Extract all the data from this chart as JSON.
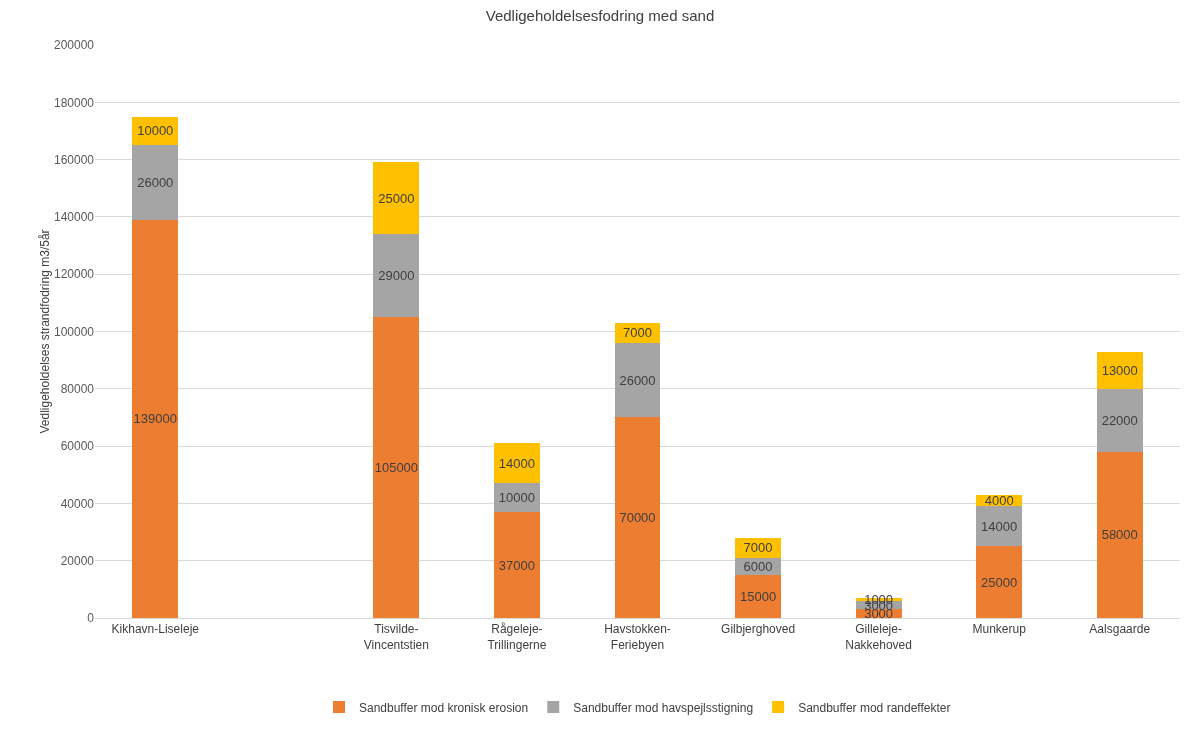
{
  "chart_data": {
    "type": "bar",
    "stacked": true,
    "title": "Vedligeholdelsesfodring med sand",
    "ylabel": "Vedligeholdelses strandfodring m3/5år",
    "categories": [
      "Kikhavn-Liseleje",
      null,
      "Tisvilde-Vincentstien",
      "Rågeleje-Trillingerne",
      "Havstokken-Feriebyen",
      "Gilbjerghoved",
      "Gilleleje-Nakkehoved",
      "Munkerup",
      "Aalsgaarde"
    ],
    "series": [
      {
        "name": "Sandbuffer mod kronisk erosion",
        "color": "#ed7d31",
        "values": [
          139000,
          null,
          105000,
          37000,
          70000,
          15000,
          3000,
          25000,
          58000
        ]
      },
      {
        "name": "Sandbuffer mod havspejlsstigning",
        "color": "#a5a5a5",
        "values": [
          26000,
          null,
          29000,
          10000,
          26000,
          6000,
          3000,
          14000,
          22000
        ]
      },
      {
        "name": "Sandbuffer mod randeffekter",
        "color": "#ffc000",
        "values": [
          10000,
          null,
          25000,
          14000,
          7000,
          7000,
          1000,
          4000,
          13000
        ]
      }
    ],
    "ylim": [
      0,
      200000
    ],
    "yticks": [
      0,
      20000,
      40000,
      60000,
      80000,
      100000,
      120000,
      140000,
      160000,
      180000,
      200000
    ],
    "grid": "y",
    "legend": "bottom",
    "data_labels": true
  }
}
